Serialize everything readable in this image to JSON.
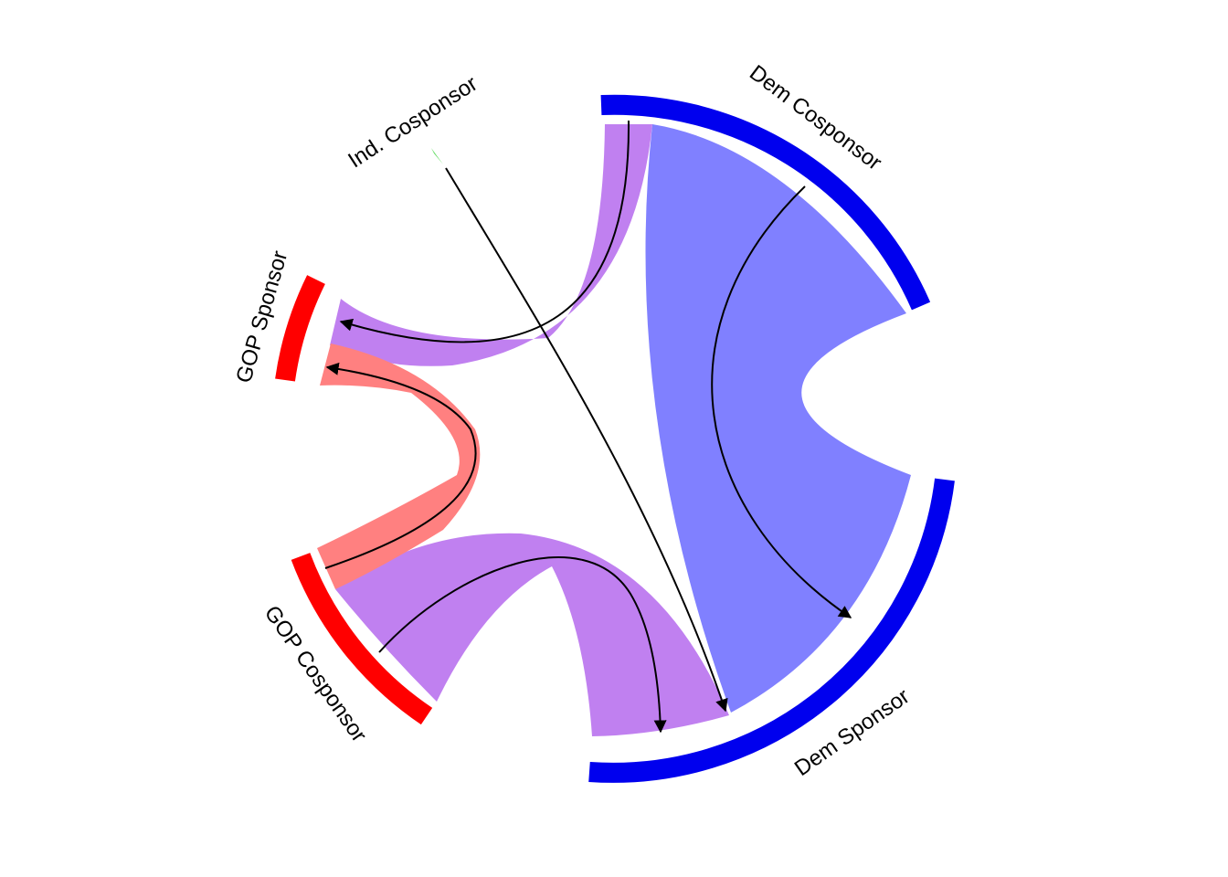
{
  "diagram": {
    "type": "chord",
    "title": "",
    "sectors": [
      {
        "id": "dem_cosponsor",
        "label": "Dem Cosponsor",
        "color": "#0000ee"
      },
      {
        "id": "dem_sponsor",
        "label": "Dem Sponsor",
        "color": "#0000ee"
      },
      {
        "id": "gop_cosponsor",
        "label": "GOP Cosponsor",
        "color": "#ff0000"
      },
      {
        "id": "gop_sponsor",
        "label": "GOP Sponsor",
        "color": "#ff0000"
      },
      {
        "id": "ind_cosponsor",
        "label": "Ind. Cosponsor",
        "color": "#00cc00"
      }
    ],
    "flows": [
      {
        "from": "Dem Cosponsor",
        "to": "Dem Sponsor",
        "color": "#8080ff"
      },
      {
        "from": "GOP Cosponsor",
        "to": "Dem Sponsor",
        "color": "#c080f0"
      },
      {
        "from": "Ind. Cosponsor",
        "to": "Dem Sponsor",
        "color": "#66dd66"
      },
      {
        "from": "Dem Cosponsor",
        "to": "GOP Sponsor",
        "color": "#c080f0"
      },
      {
        "from": "GOP Cosponsor",
        "to": "GOP Sponsor",
        "color": "#ff8080"
      }
    ]
  }
}
